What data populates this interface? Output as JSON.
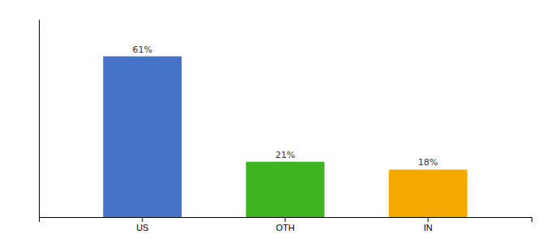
{
  "chart_data": {
    "type": "bar",
    "categories": [
      "US",
      "OTH",
      "IN"
    ],
    "values": [
      61,
      21,
      18
    ],
    "value_labels": [
      "61%",
      "21%",
      "18%"
    ],
    "data_labels": true,
    "colors": [
      "#4472C4",
      "#3CB520",
      "#F5A800"
    ],
    "ylim": [
      0,
      75
    ],
    "tick_labels": "x"
  }
}
